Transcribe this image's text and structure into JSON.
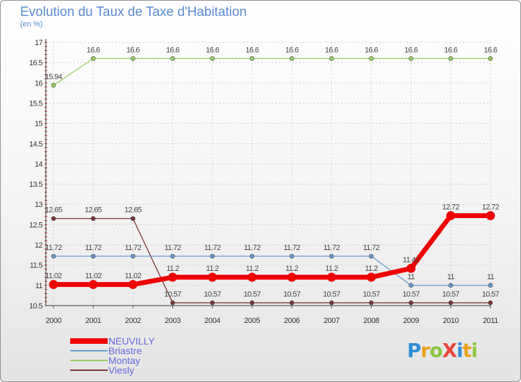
{
  "title": "Evolution du Taux de Taxe d'Habitation",
  "subtitle": "(en %)",
  "logo": {
    "text": "ProXiti",
    "letters": [
      {
        "ch": "P",
        "color": "#2f8fd8"
      },
      {
        "ch": "r",
        "color": "#e8a21a"
      },
      {
        "ch": "o",
        "color": "#8cc63f"
      },
      {
        "ch": "X",
        "color": "#e8463a"
      },
      {
        "ch": "i",
        "color": "#2f8fd8"
      },
      {
        "ch": "t",
        "color": "#e8a21a"
      },
      {
        "ch": "i",
        "color": "#8cc63f"
      }
    ]
  },
  "chart_data": {
    "type": "line",
    "title": "Evolution du Taux de Taxe d'Habitation",
    "ylabel": "(en %)",
    "xlabel": "",
    "x": [
      "2000",
      "2001",
      "2002",
      "2003",
      "2004",
      "2005",
      "2006",
      "2007",
      "2008",
      "2009",
      "2010",
      "2011"
    ],
    "ylim": [
      10.5,
      17
    ],
    "yticks": [
      "10.5",
      "11",
      "11.5",
      "12",
      "12.5",
      "13",
      "13.5",
      "14",
      "14.5",
      "15",
      "15.5",
      "16",
      "16.5",
      "17"
    ],
    "grid": true,
    "legend_position": "bottom-left",
    "series": [
      {
        "name": "NEUVILLY",
        "color": "#ee0000",
        "values": [
          11.02,
          11.02,
          11.02,
          11.2,
          11.2,
          11.2,
          11.2,
          11.2,
          11.2,
          11.42,
          12.72,
          12.72
        ],
        "labels": [
          "11.02",
          "11.02",
          "11.02",
          "11.2",
          "11.2",
          "11.2",
          "11.2",
          "11.2",
          "11.2",
          "11.42",
          "12.72",
          "12.72"
        ]
      },
      {
        "name": "Briastre",
        "color": "#6699cc",
        "values": [
          11.72,
          11.72,
          11.72,
          11.72,
          11.72,
          11.72,
          11.72,
          11.72,
          11.72,
          11,
          11,
          11
        ],
        "labels": [
          "11.72",
          "11.72",
          "11.72",
          "11.72",
          "11.72",
          "11.72",
          "11.72",
          "11.72",
          "11.72",
          "11",
          "11",
          "11"
        ]
      },
      {
        "name": "Montay",
        "color": "#99cc66",
        "values": [
          15.94,
          16.6,
          16.6,
          16.6,
          16.6,
          16.6,
          16.6,
          16.6,
          16.6,
          16.6,
          16.6,
          16.6
        ],
        "labels": [
          "15.94",
          "16.6",
          "16.6",
          "16.6",
          "16.6",
          "16.6",
          "16.6",
          "16.6",
          "16.6",
          "16.6",
          "16.6",
          "16.6"
        ]
      },
      {
        "name": "Viesly",
        "color": "#7a3333",
        "values": [
          12.65,
          12.65,
          12.65,
          10.57,
          10.57,
          10.57,
          10.57,
          10.57,
          10.57,
          10.57,
          10.57,
          10.57
        ],
        "labels": [
          "12.65",
          "12.65",
          "12.65",
          "10.57",
          "10.57",
          "10.57",
          "10.57",
          "10.57",
          "10.57",
          "10.57",
          "10.57",
          "10.57"
        ]
      }
    ]
  }
}
